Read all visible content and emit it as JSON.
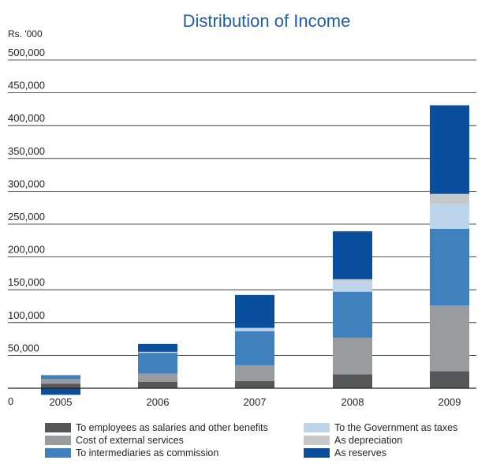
{
  "chart_data": {
    "type": "bar",
    "stacked": true,
    "title": "Distribution of Income",
    "unit_label": "Rs. '000",
    "xlabel": "",
    "ylabel": "",
    "zero_label": "0",
    "ylim": [
      0,
      500000
    ],
    "yticks": [
      50000,
      100000,
      150000,
      200000,
      250000,
      300000,
      350000,
      400000,
      450000,
      500000
    ],
    "ytick_labels": [
      "50,000",
      "100,000",
      "150,000",
      "200,000",
      "250,000",
      "300,000",
      "350,000",
      "400,000",
      "450,000",
      "500,000"
    ],
    "grid": true,
    "legend_position": "bottom",
    "categories": [
      "2005",
      "2006",
      "2007",
      "2008",
      "2009"
    ],
    "series": [
      {
        "name": "To employees as salaries and other benefits",
        "color": "#555759",
        "values": [
          7000,
          10000,
          11000,
          21000,
          26000
        ]
      },
      {
        "name": "Cost of external services",
        "color": "#9a9b9d",
        "values": [
          7000,
          12000,
          24000,
          56000,
          100000
        ]
      },
      {
        "name": "To intermediaries as commission",
        "color": "#3f80bd",
        "values": [
          6000,
          32000,
          52000,
          70000,
          117000
        ]
      },
      {
        "name": "To the Government as taxes",
        "color": "#bcd5ec",
        "values": [
          0,
          1000,
          4000,
          16000,
          38000
        ]
      },
      {
        "name": "As depreciation",
        "color": "#c7c8ca",
        "values": [
          0,
          500,
          1000,
          3000,
          15000
        ]
      },
      {
        "name": "As reserves",
        "color": "#0a4f9e",
        "values": [
          -10000,
          12000,
          50000,
          73000,
          135000
        ]
      }
    ]
  }
}
